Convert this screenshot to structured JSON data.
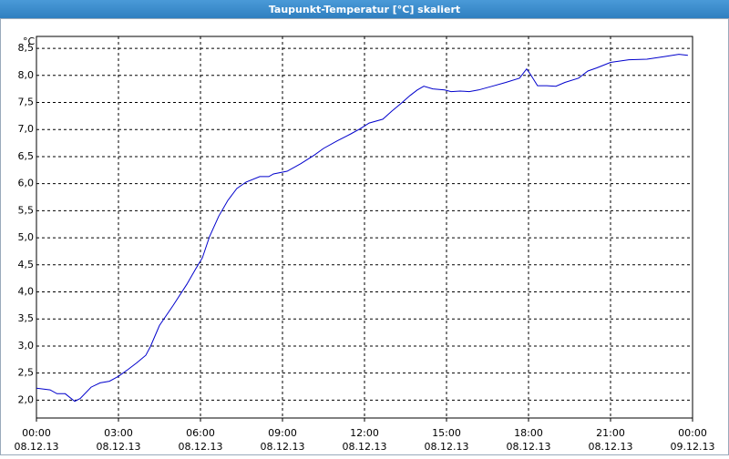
{
  "chart_data": {
    "type": "line",
    "title": "Taupunkt-Temperatur [°C] skaliert",
    "y_label": "°C",
    "color": "#0000cc",
    "grid": true,
    "x": [
      0,
      0.5,
      0.75,
      1.05,
      1.4,
      1.6,
      2.0,
      2.33,
      2.67,
      3.0,
      3.33,
      3.67,
      4.0,
      4.17,
      4.5,
      5.0,
      5.5,
      5.83,
      6.07,
      6.33,
      6.67,
      7.0,
      7.33,
      7.67,
      8.17,
      8.5,
      8.67,
      9.17,
      9.67,
      10.17,
      10.5,
      11.0,
      11.5,
      11.83,
      12.17,
      12.67,
      13.0,
      13.33,
      13.67,
      13.93,
      14.17,
      14.5,
      14.93,
      15.17,
      15.5,
      15.83,
      16.17,
      16.67,
      17.17,
      17.67,
      17.93,
      18.07,
      18.33,
      18.67,
      19.0,
      19.33,
      19.83,
      20.17,
      20.5,
      21.0,
      21.67,
      22.33,
      23.0,
      23.5,
      23.83
    ],
    "values": [
      2.22,
      2.19,
      2.12,
      2.12,
      1.98,
      2.03,
      2.24,
      2.32,
      2.35,
      2.44,
      2.56,
      2.69,
      2.83,
      2.99,
      3.38,
      3.75,
      4.14,
      4.43,
      4.63,
      5.02,
      5.4,
      5.69,
      5.91,
      6.03,
      6.13,
      6.13,
      6.18,
      6.23,
      6.37,
      6.53,
      6.65,
      6.79,
      6.92,
      7.01,
      7.12,
      7.19,
      7.34,
      7.48,
      7.63,
      7.73,
      7.8,
      7.75,
      7.73,
      7.7,
      7.71,
      7.7,
      7.73,
      7.8,
      7.87,
      7.95,
      8.12,
      8.02,
      7.81,
      7.81,
      7.8,
      7.87,
      7.95,
      8.08,
      8.14,
      8.24,
      8.29,
      8.3,
      8.35,
      8.39,
      8.37
    ],
    "xlim": [
      0,
      24
    ],
    "xticks": [
      {
        "value": 0,
        "label": "00:00",
        "date": "08.12.13"
      },
      {
        "value": 3,
        "label": "03:00",
        "date": "08.12.13"
      },
      {
        "value": 6,
        "label": "06:00",
        "date": "08.12.13"
      },
      {
        "value": 9,
        "label": "09:00",
        "date": "08.12.13"
      },
      {
        "value": 12,
        "label": "12:00",
        "date": "08.12.13"
      },
      {
        "value": 15,
        "label": "15:00",
        "date": "08.12.13"
      },
      {
        "value": 18,
        "label": "18:00",
        "date": "08.12.13"
      },
      {
        "value": 21,
        "label": "21:00",
        "date": "08.12.13"
      },
      {
        "value": 24,
        "label": "00:00",
        "date": "09.12.13"
      }
    ],
    "ylim": [
      1.67,
      8.72
    ],
    "yticks": [
      {
        "value": 2,
        "label": "2,0"
      },
      {
        "value": 2.5,
        "label": "2,5"
      },
      {
        "value": 3,
        "label": "3,0"
      },
      {
        "value": 3.5,
        "label": "3,5"
      },
      {
        "value": 4,
        "label": "4,0"
      },
      {
        "value": 4.5,
        "label": "4,5"
      },
      {
        "value": 5,
        "label": "5,0"
      },
      {
        "value": 5.5,
        "label": "5,5"
      },
      {
        "value": 6,
        "label": "6,0"
      },
      {
        "value": 6.5,
        "label": "6,5"
      },
      {
        "value": 7,
        "label": "7,0"
      },
      {
        "value": 7.5,
        "label": "7,5"
      },
      {
        "value": 8,
        "label": "8,0"
      },
      {
        "value": 8.5,
        "label": "8,5"
      }
    ]
  }
}
